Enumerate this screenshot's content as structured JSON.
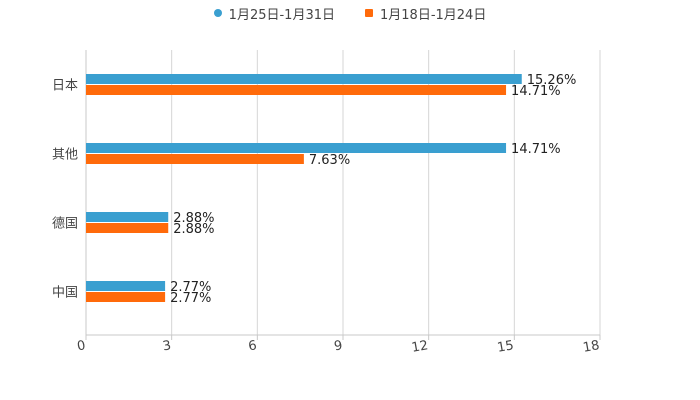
{
  "chart_data": {
    "type": "bar",
    "orientation": "horizontal",
    "categories": [
      "日本",
      "其他",
      "德国",
      "中国"
    ],
    "series": [
      {
        "name": "1月25日-1月31日",
        "values": [
          15.26,
          14.71,
          2.88,
          2.77
        ],
        "labels": [
          "15.26%",
          "14.71%",
          "2.88%",
          "2.77%"
        ],
        "color": "#3a9fd0"
      },
      {
        "name": "1月18日-1月24日",
        "values": [
          14.71,
          7.63,
          2.88,
          2.77
        ],
        "labels": [
          "14.71%",
          "7.63%",
          "2.88%",
          "2.77%"
        ],
        "color": "#ff6a0a"
      }
    ],
    "xlim": [
      0,
      18
    ],
    "xticks": [
      "0",
      "3",
      "6",
      "9",
      "12",
      "15",
      "18"
    ],
    "grid": true,
    "legend_position": "top-center",
    "title": "",
    "xlabel": "",
    "ylabel": ""
  }
}
